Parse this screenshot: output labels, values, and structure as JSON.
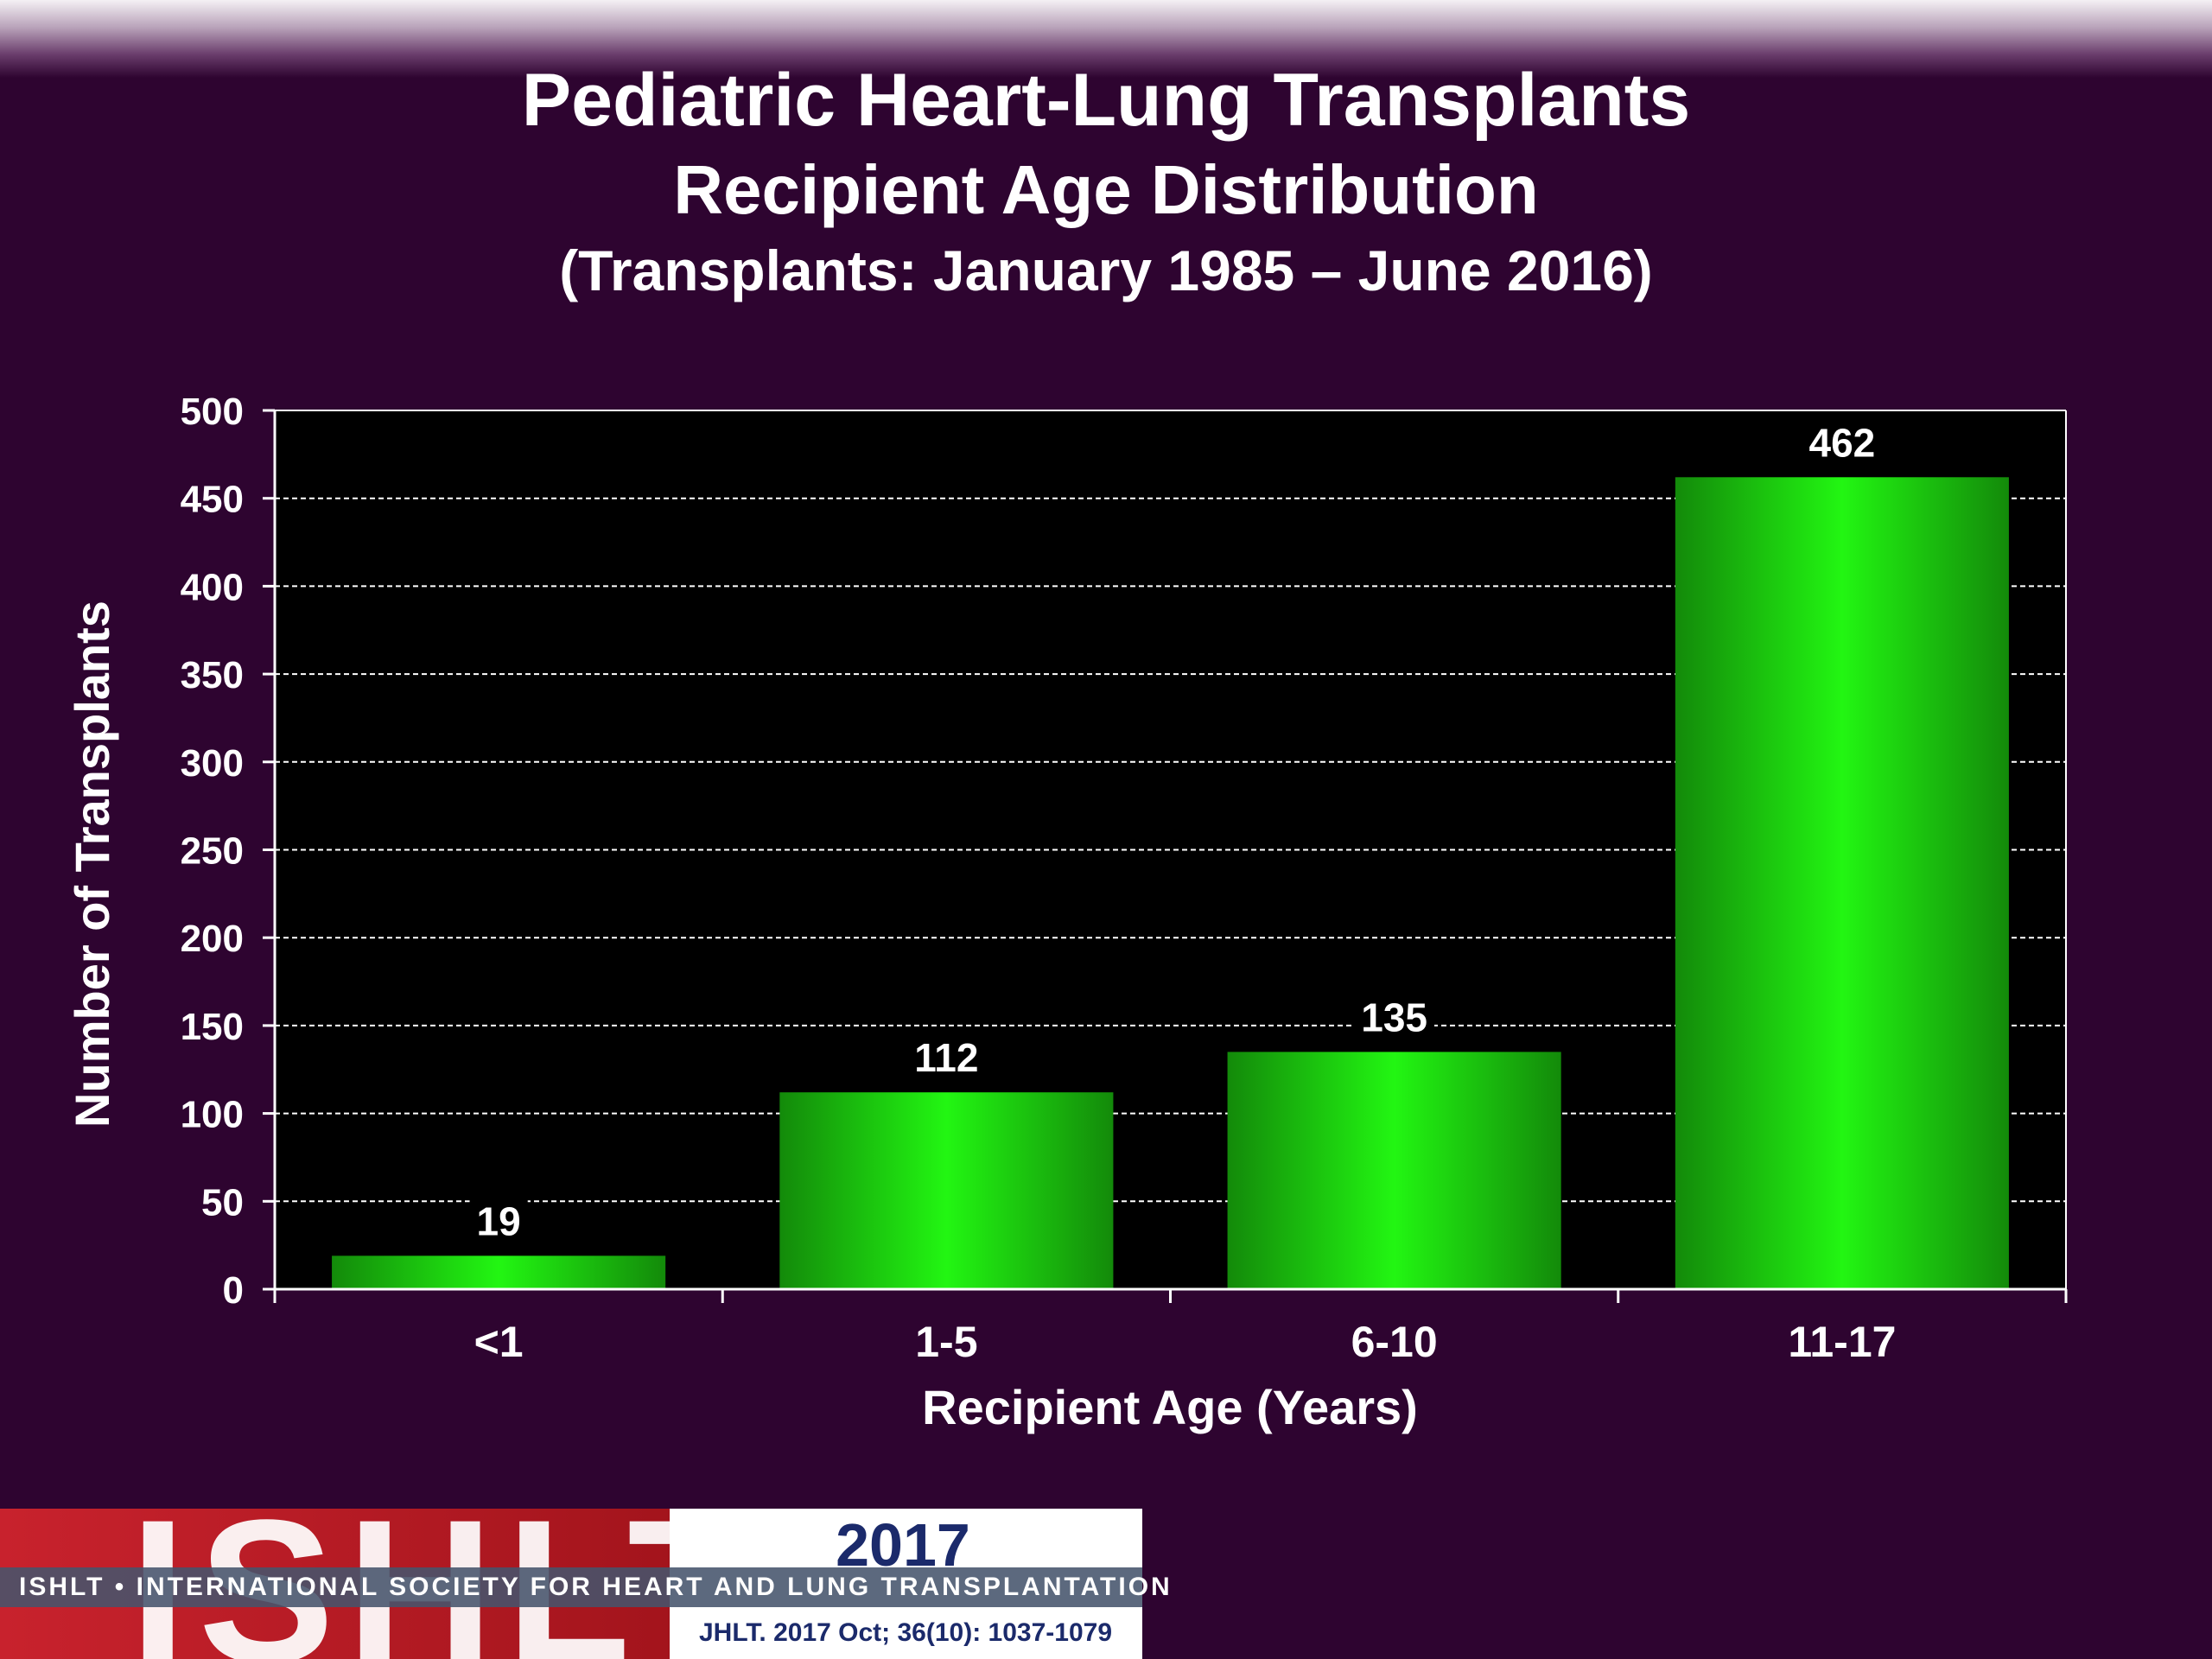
{
  "title": {
    "main": "Pediatric Heart-Lung Transplants",
    "sub": "Recipient Age Distribution",
    "range": "(Transplants: January 1985 – June 2016)"
  },
  "chart_data": {
    "type": "bar",
    "xlabel": "Recipient Age (Years)",
    "ylabel": "Number of Transplants",
    "categories": [
      "<1",
      "1-5",
      "6-10",
      "11-17"
    ],
    "values": [
      19,
      112,
      135,
      462
    ],
    "data_labels": [
      "19",
      "112",
      "135",
      "462"
    ],
    "ylim": [
      0,
      500
    ],
    "yticks": [
      0,
      50,
      100,
      150,
      200,
      250,
      300,
      350,
      400,
      450,
      500
    ],
    "grid": true,
    "grid_style": "dashed",
    "legend": "none",
    "colors": {
      "bar": "#22ee11",
      "bar_edge": "#138a0a",
      "plot_background": "#000000",
      "page_background": "#2e0430",
      "text": "#ffffff"
    }
  },
  "footer": {
    "logo_text": "ISHLT",
    "year": "2017",
    "band_text": "ISHLT • INTERNATIONAL SOCIETY FOR HEART AND LUNG TRANSPLANTATION",
    "citation": "JHLT. 2017 Oct; 36(10): 1037-1079"
  }
}
